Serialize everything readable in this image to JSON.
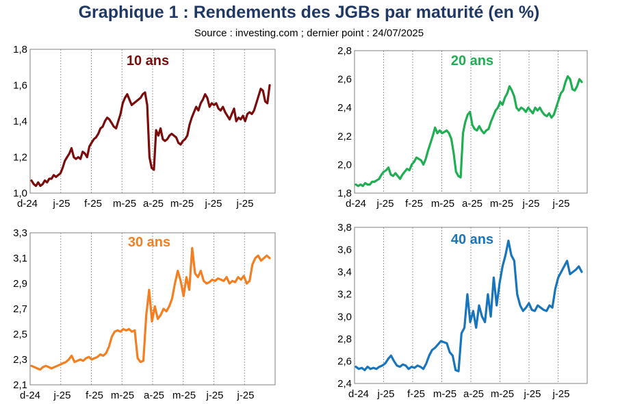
{
  "title": "Graphique 1 : Rendements des JGBs par maturité (en %)",
  "subtitle": "Source : investing.com ; dernier point : 24/07/2025",
  "chart_data": [
    {
      "type": "line",
      "label": "10 ans",
      "color": "#7B0C0C",
      "x_tick_labels": [
        "d-24",
        "j-25",
        "f-25",
        "m-25",
        "a-25",
        "m-25",
        "j-25",
        "j-25"
      ],
      "y_ticks": [
        "1,0",
        "1,2",
        "1,4",
        "1,6",
        "1,8"
      ],
      "ylim": [
        1.0,
        1.8
      ],
      "grid": "vertical",
      "series": [
        {
          "values": [
            1.07,
            1.05,
            1.04,
            1.06,
            1.04,
            1.05,
            1.07,
            1.06,
            1.08,
            1.08,
            1.1,
            1.09,
            1.1,
            1.11,
            1.14,
            1.18,
            1.2,
            1.22,
            1.25,
            1.2,
            1.19,
            1.2,
            1.19,
            1.23,
            1.22,
            1.2,
            1.26,
            1.28,
            1.3,
            1.31,
            1.33,
            1.36,
            1.37,
            1.4,
            1.42,
            1.41,
            1.39,
            1.37,
            1.36,
            1.4,
            1.44,
            1.5,
            1.53,
            1.55,
            1.52,
            1.49,
            1.5,
            1.51,
            1.52,
            1.53,
            1.55,
            1.56,
            1.49,
            1.2,
            1.14,
            1.13,
            1.35,
            1.32,
            1.36,
            1.3,
            1.29,
            1.3,
            1.32,
            1.33,
            1.32,
            1.31,
            1.28,
            1.27,
            1.29,
            1.3,
            1.32,
            1.38,
            1.42,
            1.45,
            1.48,
            1.46,
            1.5,
            1.52,
            1.55,
            1.53,
            1.48,
            1.5,
            1.49,
            1.5,
            1.47,
            1.46,
            1.48,
            1.45,
            1.43,
            1.41,
            1.44,
            1.47,
            1.4,
            1.42,
            1.41,
            1.43,
            1.4,
            1.44,
            1.45,
            1.44,
            1.46,
            1.5,
            1.54,
            1.58,
            1.57,
            1.51,
            1.5,
            1.6
          ]
        }
      ]
    },
    {
      "type": "line",
      "label": "20 ans",
      "color": "#1FAE52",
      "x_tick_labels": [
        "d-24",
        "j-25",
        "f-25",
        "m-25",
        "a-25",
        "m-25",
        "j-25",
        "j-25"
      ],
      "y_ticks": [
        "1,8",
        "2,0",
        "2,2",
        "2,4",
        "2,6",
        "2,8"
      ],
      "ylim": [
        1.8,
        2.8
      ],
      "grid": "vertical",
      "series": [
        {
          "values": [
            1.86,
            1.85,
            1.86,
            1.85,
            1.87,
            1.86,
            1.86,
            1.88,
            1.88,
            1.89,
            1.9,
            1.93,
            1.95,
            1.96,
            1.98,
            1.93,
            1.92,
            1.94,
            1.92,
            1.9,
            1.93,
            1.95,
            1.97,
            1.96,
            2.0,
            2.02,
            2.05,
            2.04,
            2.03,
            2.0,
            2.04,
            2.1,
            2.15,
            2.2,
            2.26,
            2.22,
            2.24,
            2.22,
            2.23,
            2.24,
            2.22,
            2.18,
            2.08,
            1.95,
            1.92,
            1.91,
            2.22,
            2.3,
            2.35,
            2.37,
            2.28,
            2.25,
            2.24,
            2.27,
            2.24,
            2.22,
            2.24,
            2.25,
            2.3,
            2.34,
            2.38,
            2.4,
            2.44,
            2.42,
            2.47,
            2.5,
            2.55,
            2.52,
            2.48,
            2.4,
            2.38,
            2.4,
            2.39,
            2.37,
            2.4,
            2.38,
            2.36,
            2.4,
            2.38,
            2.4,
            2.37,
            2.35,
            2.34,
            2.36,
            2.33,
            2.35,
            2.4,
            2.45,
            2.5,
            2.52,
            2.58,
            2.62,
            2.6,
            2.53,
            2.52,
            2.55,
            2.6,
            2.58
          ]
        }
      ]
    },
    {
      "type": "line",
      "label": "30 ans",
      "color": "#F47F20",
      "x_tick_labels": [
        "d-24",
        "j-25",
        "f-25",
        "m-25",
        "a-25",
        "m-25",
        "j-25",
        "j-25"
      ],
      "y_ticks": [
        "2,1",
        "2,3",
        "2,5",
        "2,7",
        "2,9",
        "3,1",
        "3,3"
      ],
      "ylim": [
        2.1,
        3.3
      ],
      "grid": "vertical",
      "series": [
        {
          "values": [
            2.25,
            2.24,
            2.23,
            2.22,
            2.24,
            2.25,
            2.24,
            2.23,
            2.24,
            2.25,
            2.26,
            2.27,
            2.28,
            2.3,
            2.33,
            2.28,
            2.29,
            2.3,
            2.29,
            2.31,
            2.32,
            2.3,
            2.31,
            2.32,
            2.34,
            2.33,
            2.35,
            2.4,
            2.48,
            2.52,
            2.53,
            2.52,
            2.54,
            2.53,
            2.54,
            2.52,
            2.53,
            2.31,
            2.28,
            2.29,
            2.65,
            2.85,
            2.6,
            2.72,
            2.62,
            2.65,
            2.7,
            2.68,
            2.72,
            2.78,
            2.9,
            3.0,
            2.92,
            2.8,
            2.95,
            2.85,
            3.18,
            2.98,
            2.95,
            3.0,
            2.92,
            2.9,
            2.91,
            2.93,
            2.92,
            2.94,
            2.93,
            2.92,
            2.95,
            2.9,
            2.92,
            2.91,
            2.95,
            2.93,
            2.96,
            2.9,
            2.92,
            3.05,
            3.1,
            3.12,
            3.08,
            3.1,
            3.12,
            3.1
          ]
        }
      ]
    },
    {
      "type": "line",
      "label": "40 ans",
      "color": "#1875BC",
      "x_tick_labels": [
        "d-24",
        "j-25",
        "f-25",
        "m-25",
        "a-25",
        "m-25",
        "j-25",
        "j-25"
      ],
      "y_ticks": [
        "2,4",
        "2,6",
        "2,8",
        "3,0",
        "3,2",
        "3,4",
        "3,6",
        "3,8"
      ],
      "ylim": [
        2.4,
        3.8
      ],
      "grid": "vertical",
      "series": [
        {
          "values": [
            2.55,
            2.53,
            2.54,
            2.52,
            2.55,
            2.53,
            2.54,
            2.53,
            2.55,
            2.56,
            2.58,
            2.62,
            2.65,
            2.6,
            2.56,
            2.55,
            2.57,
            2.56,
            2.53,
            2.55,
            2.54,
            2.56,
            2.55,
            2.53,
            2.58,
            2.65,
            2.7,
            2.72,
            2.75,
            2.78,
            2.77,
            2.76,
            2.68,
            2.65,
            2.52,
            2.51,
            2.85,
            2.9,
            3.2,
            2.95,
            3.05,
            2.9,
            3.1,
            3.0,
            2.95,
            3.2,
            3.0,
            3.35,
            3.1,
            3.3,
            3.45,
            3.55,
            3.68,
            3.55,
            3.5,
            3.2,
            3.1,
            3.05,
            3.08,
            3.12,
            3.06,
            3.05,
            3.1,
            3.08,
            3.06,
            3.05,
            3.1,
            3.08,
            3.25,
            3.35,
            3.4,
            3.45,
            3.5,
            3.38,
            3.4,
            3.42,
            3.45,
            3.4
          ]
        }
      ]
    }
  ]
}
